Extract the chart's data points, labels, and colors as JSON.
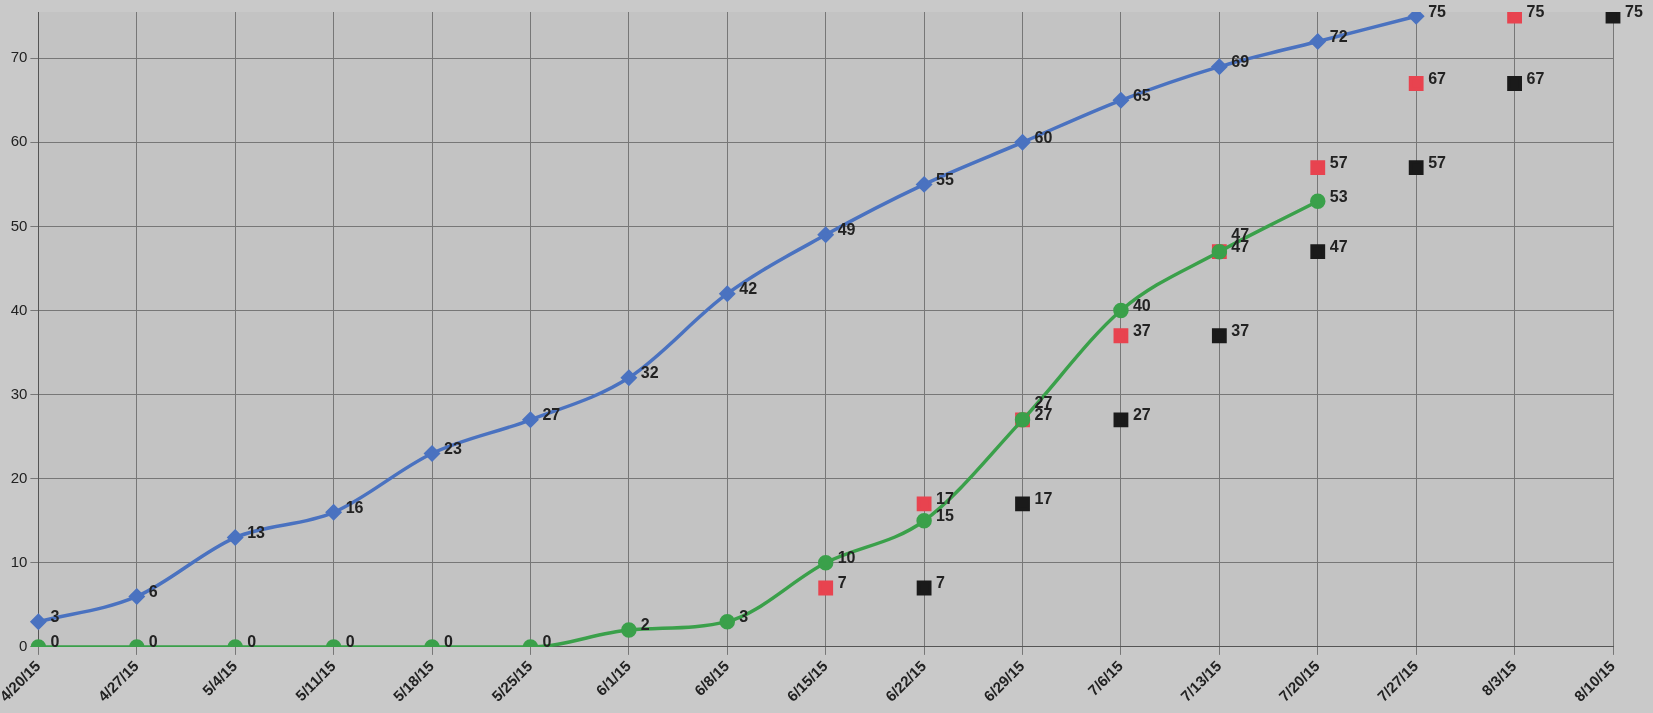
{
  "chart_data": {
    "type": "line",
    "categories": [
      "4/20/15",
      "4/27/15",
      "5/4/15",
      "5/11/15",
      "5/18/15",
      "5/25/15",
      "6/1/15",
      "6/8/15",
      "6/15/15",
      "6/22/15",
      "6/29/15",
      "7/6/15",
      "7/13/15",
      "7/20/15",
      "7/27/15",
      "8/3/15",
      "8/10/15"
    ],
    "series": [
      {
        "type": "line",
        "marker": "diamond",
        "color": "#4a72c0",
        "values": [
          3,
          6,
          13,
          16,
          23,
          27,
          32,
          42,
          49,
          55,
          60,
          65,
          69,
          72,
          75,
          null,
          null
        ]
      },
      {
        "type": "line",
        "marker": "circle",
        "color": "#3aa04a",
        "values": [
          0,
          0,
          0,
          0,
          0,
          0,
          2,
          3,
          10,
          15,
          27,
          40,
          47,
          53,
          null,
          null,
          null
        ]
      },
      {
        "type": "scatter",
        "marker": "square",
        "color": "#e8434f",
        "values": [
          null,
          null,
          null,
          null,
          null,
          null,
          null,
          null,
          7,
          17,
          27,
          37,
          47,
          57,
          67,
          75,
          null
        ]
      },
      {
        "type": "scatter",
        "marker": "square",
        "color": "#1a1a1a",
        "values": [
          null,
          null,
          null,
          null,
          null,
          null,
          null,
          null,
          null,
          7,
          17,
          27,
          37,
          47,
          57,
          67,
          75
        ]
      }
    ],
    "ylim": [
      0,
      75.5
    ],
    "yticks": [
      0,
      10,
      20,
      30,
      40,
      50,
      60,
      70
    ],
    "grid": true,
    "legend": false,
    "data_labels": true
  }
}
